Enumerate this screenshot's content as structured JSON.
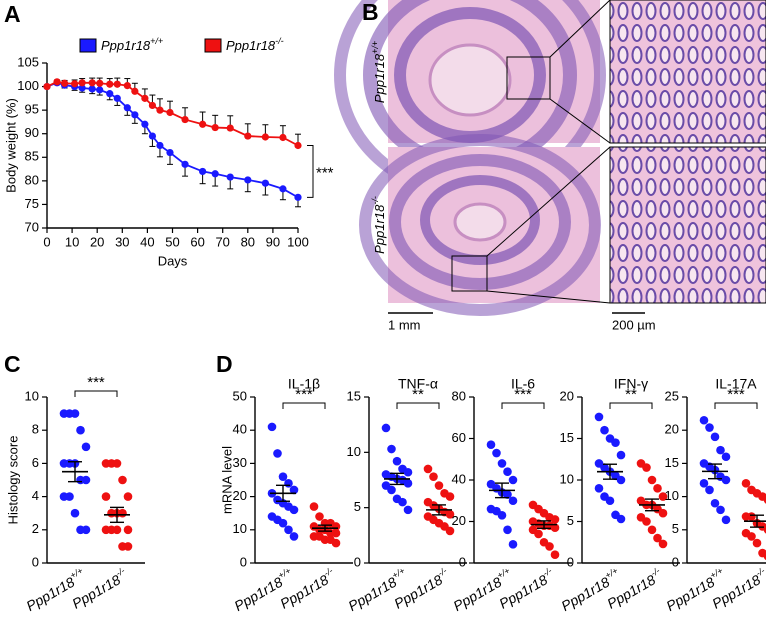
{
  "histology": {
    "panel": "B",
    "row_labels": [
      "Ppp1r18+/+",
      "Ppp1r18-/-"
    ],
    "scale_bars": [
      "1 mm",
      "200 µm"
    ]
  },
  "chart_data": [
    {
      "type": "line",
      "panel": "A",
      "ylabel": "Body weight (%)",
      "xlabel": "Days",
      "x": [
        0,
        4,
        7,
        11,
        14,
        18,
        21,
        25,
        28,
        32,
        35,
        39,
        42,
        45,
        49,
        55,
        62,
        67,
        73,
        80,
        87,
        94,
        100
      ],
      "series": [
        {
          "name": "Ppp1r18+/+",
          "color": "#1a1aff",
          "error_side": "below",
          "values": [
            100,
            100.8,
            100.3,
            100,
            99.7,
            99.5,
            99.3,
            98.5,
            97.5,
            95.5,
            94,
            92,
            89.5,
            87.5,
            86,
            83.5,
            82,
            81.5,
            80.8,
            80.2,
            79.5,
            78.3,
            76.5
          ],
          "errors": [
            0.3,
            0.4,
            0.6,
            0.8,
            0.9,
            1,
            1.1,
            1.3,
            1.5,
            1.6,
            1.8,
            2,
            2.2,
            2.4,
            2.5,
            2.5,
            2.6,
            2.6,
            2.5,
            2.5,
            2.5,
            2.3,
            2
          ]
        },
        {
          "name": "Ppp1r18-/-",
          "color": "#ee1111",
          "error_side": "above",
          "values": [
            100,
            101,
            100.7,
            100.6,
            100.8,
            100.8,
            100.7,
            100.5,
            100.5,
            100.2,
            99,
            97.5,
            96,
            95,
            94.5,
            93,
            92,
            91.3,
            91.2,
            89.5,
            89.3,
            89.2,
            87.5
          ],
          "errors": [
            0.3,
            0.4,
            0.6,
            0.8,
            0.9,
            1,
            1.1,
            1.2,
            1.3,
            1.5,
            1.7,
            2,
            2.2,
            2.4,
            2.4,
            2.5,
            2.6,
            2.6,
            2.6,
            2.6,
            2.6,
            2.5,
            2.4
          ]
        }
      ],
      "xlim": [
        0,
        100
      ],
      "xticks": [
        0,
        10,
        20,
        30,
        40,
        50,
        60,
        70,
        80,
        90,
        100
      ],
      "ylim": [
        70,
        105
      ],
      "yticks": [
        70,
        75,
        80,
        85,
        90,
        95,
        100,
        105
      ],
      "significance": "***"
    },
    {
      "type": "dot",
      "panel": "C",
      "ylabel": "Histology score",
      "categories": [
        "Ppp1r18+/+",
        "Ppp1r18-/-"
      ],
      "groups": [
        {
          "color": "#1a1aff",
          "values": [
            9,
            9,
            9,
            8,
            7,
            6,
            6,
            6,
            5,
            5,
            4,
            4,
            3,
            2,
            2
          ],
          "mean": 5.5,
          "sem": 0.6
        },
        {
          "color": "#ee1111",
          "values": [
            6,
            6,
            6,
            5,
            4,
            4,
            3,
            3,
            3,
            2,
            2,
            2,
            2,
            1,
            1
          ],
          "mean": 2.9,
          "sem": 0.45
        }
      ],
      "ylim": [
        0,
        10
      ],
      "yticks": [
        0,
        2,
        4,
        6,
        8,
        10
      ],
      "significance": "***"
    },
    {
      "type": "dot",
      "panel": "D",
      "title": "IL-1β",
      "ylabel": "mRNA level",
      "categories": [
        "Ppp1r18+/+",
        "Ppp1r18-/-"
      ],
      "groups": [
        {
          "color": "#1a1aff",
          "values": [
            41,
            33,
            26,
            24,
            22,
            21,
            19,
            18,
            17,
            16,
            14,
            13,
            12,
            10,
            8
          ],
          "mean": 21,
          "sem": 2.4
        },
        {
          "color": "#ee1111",
          "values": [
            17,
            14,
            12,
            12,
            11,
            11,
            10,
            10,
            9,
            9,
            8,
            8,
            7,
            7,
            6
          ],
          "mean": 10.5,
          "sem": 0.9
        }
      ],
      "ylim": [
        0,
        50
      ],
      "yticks": [
        0,
        10,
        20,
        30,
        40,
        50
      ],
      "significance": "***"
    },
    {
      "type": "dot",
      "title": "TNF-α",
      "categories": [
        "Ppp1r18+/+",
        "Ppp1r18-/-"
      ],
      "groups": [
        {
          "color": "#1a1aff",
          "values": [
            12.2,
            10.3,
            9.2,
            8.5,
            8.2,
            8,
            7.8,
            7.6,
            7.5,
            7.2,
            7,
            6.6,
            5.8,
            5.5,
            4.8
          ],
          "mean": 7.6,
          "sem": 0.5
        },
        {
          "color": "#ee1111",
          "values": [
            8.5,
            7.8,
            7,
            6.3,
            6,
            5.5,
            5.2,
            4.9,
            4.6,
            4.4,
            4.2,
            3.9,
            3.6,
            3.3,
            2.9
          ],
          "mean": 4.8,
          "sem": 0.45
        }
      ],
      "ylim": [
        0,
        15
      ],
      "yticks": [
        0,
        5,
        10,
        15
      ],
      "significance": "**"
    },
    {
      "type": "dot",
      "title": "IL-6",
      "categories": [
        "Ppp1r18+/+",
        "Ppp1r18-/-"
      ],
      "groups": [
        {
          "color": "#1a1aff",
          "values": [
            57,
            53,
            48,
            44,
            40,
            38,
            36,
            34,
            33,
            30,
            26,
            25,
            23,
            16,
            9
          ],
          "mean": 35,
          "sem": 3.5
        },
        {
          "color": "#ee1111",
          "values": [
            28,
            26,
            24,
            22,
            21,
            20,
            19,
            18,
            18,
            17,
            16,
            14,
            10,
            8,
            4
          ],
          "mean": 18.5,
          "sem": 1.8
        }
      ],
      "ylim": [
        0,
        80
      ],
      "yticks": [
        0,
        20,
        40,
        60,
        80
      ],
      "significance": "***"
    },
    {
      "type": "dot",
      "title": "IFN-γ",
      "categories": [
        "Ppp1r18+/+",
        "Ppp1r18-/-"
      ],
      "groups": [
        {
          "color": "#1a1aff",
          "values": [
            17.6,
            16,
            15,
            14.5,
            13,
            12,
            11.5,
            11,
            10.5,
            10,
            9,
            8,
            7.5,
            5.8,
            5.3
          ],
          "mean": 11,
          "sem": 0.9
        },
        {
          "color": "#ee1111",
          "values": [
            12,
            11.5,
            10,
            9,
            8,
            7.5,
            7,
            7,
            6.5,
            6,
            5.5,
            5,
            4,
            3,
            2.3
          ],
          "mean": 7,
          "sem": 0.7
        }
      ],
      "ylim": [
        0,
        20
      ],
      "yticks": [
        0,
        5,
        10,
        15,
        20
      ],
      "significance": "**"
    },
    {
      "type": "dot",
      "title": "IL-17A",
      "categories": [
        "Ppp1r18+/+",
        "Ppp1r18-/-"
      ],
      "groups": [
        {
          "color": "#1a1aff",
          "values": [
            21.5,
            20.4,
            19,
            17,
            16,
            15,
            14.5,
            14,
            13,
            12.5,
            12,
            11,
            9,
            8,
            6.5
          ],
          "mean": 13.8,
          "sem": 1.1
        },
        {
          "color": "#ee1111",
          "values": [
            12,
            11,
            10.5,
            10,
            9.5,
            7,
            7,
            6,
            5.5,
            5,
            4.5,
            4,
            3,
            1.5,
            1
          ],
          "mean": 6.3,
          "sem": 0.9
        }
      ],
      "ylim": [
        0,
        25
      ],
      "yticks": [
        0,
        5,
        10,
        15,
        20,
        25
      ],
      "significance": "***"
    }
  ]
}
